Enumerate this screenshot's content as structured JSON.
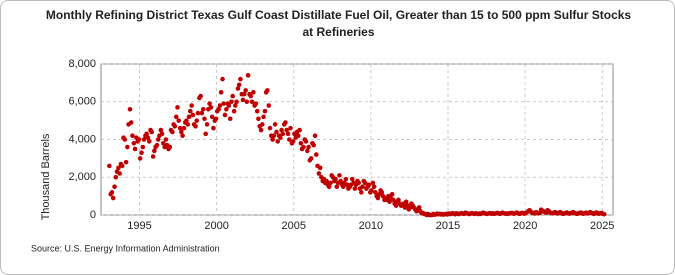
{
  "chart_data": {
    "type": "scatter",
    "title": "Monthly Refining District Texas Gulf Coast Distillate Fuel Oil, Greater than 15 to 500 ppm Sulfur Stocks at Refineries",
    "y_label": "Thousand Barrels",
    "source": "Source: U.S. Energy Information Administration",
    "color": "#c00000",
    "grid": true,
    "xlim": [
      1992.5,
      2025.7
    ],
    "xticks": [
      1995,
      2000,
      2005,
      2010,
      2015,
      2020,
      2025
    ],
    "ylim": [
      0,
      8000
    ],
    "yticks": [
      0,
      {
        "value": 2000,
        "label": "2,000"
      },
      {
        "value": 4000,
        "label": "4,000"
      },
      {
        "value": 6000,
        "label": "6,000"
      },
      {
        "value": 8000,
        "label": "8,000"
      }
    ],
    "x": [
      1993.04,
      1993.13,
      1993.21,
      1993.29,
      1993.38,
      1993.46,
      1993.54,
      1993.63,
      1993.71,
      1993.79,
      1993.88,
      1993.96,
      1994.04,
      1994.13,
      1994.21,
      1994.29,
      1994.38,
      1994.46,
      1994.54,
      1994.63,
      1994.71,
      1994.79,
      1994.88,
      1994.96,
      1995.04,
      1995.13,
      1995.21,
      1995.29,
      1995.38,
      1995.46,
      1995.54,
      1995.63,
      1995.71,
      1995.79,
      1995.88,
      1995.96,
      1996.04,
      1996.13,
      1996.21,
      1996.29,
      1996.38,
      1996.46,
      1996.54,
      1996.63,
      1996.71,
      1996.79,
      1996.88,
      1996.96,
      1997.04,
      1997.13,
      1997.21,
      1997.29,
      1997.38,
      1997.46,
      1997.54,
      1997.63,
      1997.71,
      1997.79,
      1997.88,
      1997.96,
      1998.04,
      1998.13,
      1998.21,
      1998.29,
      1998.38,
      1998.46,
      1998.54,
      1998.63,
      1998.71,
      1998.79,
      1998.88,
      1998.96,
      1999.04,
      1999.13,
      1999.21,
      1999.29,
      1999.38,
      1999.46,
      1999.54,
      1999.63,
      1999.71,
      1999.79,
      1999.88,
      1999.96,
      2000.04,
      2000.13,
      2000.21,
      2000.29,
      2000.38,
      2000.46,
      2000.54,
      2000.63,
      2000.71,
      2000.79,
      2000.88,
      2000.96,
      2001.04,
      2001.13,
      2001.21,
      2001.29,
      2001.38,
      2001.46,
      2001.54,
      2001.63,
      2001.71,
      2001.79,
      2001.88,
      2001.96,
      2002.04,
      2002.13,
      2002.21,
      2002.29,
      2002.38,
      2002.46,
      2002.54,
      2002.63,
      2002.71,
      2002.79,
      2002.88,
      2002.96,
      2003.04,
      2003.13,
      2003.21,
      2003.29,
      2003.38,
      2003.46,
      2003.54,
      2003.63,
      2003.71,
      2003.79,
      2003.88,
      2003.96,
      2004.04,
      2004.13,
      2004.21,
      2004.29,
      2004.38,
      2004.46,
      2004.54,
      2004.63,
      2004.71,
      2004.79,
      2004.88,
      2004.96,
      2005.04,
      2005.13,
      2005.21,
      2005.29,
      2005.38,
      2005.46,
      2005.54,
      2005.63,
      2005.71,
      2005.79,
      2005.88,
      2005.96,
      2006.04,
      2006.13,
      2006.21,
      2006.29,
      2006.38,
      2006.46,
      2006.54,
      2006.63,
      2006.71,
      2006.79,
      2006.88,
      2006.96,
      2007.04,
      2007.13,
      2007.21,
      2007.29,
      2007.38,
      2007.46,
      2007.54,
      2007.63,
      2007.71,
      2007.79,
      2007.88,
      2007.96,
      2008.04,
      2008.13,
      2008.21,
      2008.29,
      2008.38,
      2008.46,
      2008.54,
      2008.63,
      2008.71,
      2008.79,
      2008.88,
      2008.96,
      2009.04,
      2009.13,
      2009.21,
      2009.29,
      2009.38,
      2009.46,
      2009.54,
      2009.63,
      2009.71,
      2009.79,
      2009.88,
      2009.96,
      2010.04,
      2010.13,
      2010.21,
      2010.29,
      2010.38,
      2010.46,
      2010.54,
      2010.63,
      2010.71,
      2010.79,
      2010.88,
      2010.96,
      2011.04,
      2011.13,
      2011.21,
      2011.29,
      2011.38,
      2011.46,
      2011.54,
      2011.63,
      2011.71,
      2011.79,
      2011.88,
      2011.96,
      2012.04,
      2012.13,
      2012.21,
      2012.29,
      2012.38,
      2012.46,
      2012.54,
      2012.63,
      2012.71,
      2012.79,
      2012.88,
      2012.96,
      2013.04,
      2013.13,
      2013.21,
      2013.29,
      2013.38,
      2013.46,
      2013.54,
      2013.63,
      2013.71,
      2013.79,
      2013.88,
      2013.96,
      2014.04,
      2014.13,
      2014.21,
      2014.29,
      2014.38,
      2014.46,
      2014.54,
      2014.63,
      2014.71,
      2014.79,
      2014.88,
      2014.96,
      2015.04,
      2015.13,
      2015.21,
      2015.29,
      2015.38,
      2015.46,
      2015.54,
      2015.63,
      2015.71,
      2015.79,
      2015.88,
      2015.96,
      2016.04,
      2016.13,
      2016.21,
      2016.29,
      2016.38,
      2016.46,
      2016.54,
      2016.63,
      2016.71,
      2016.79,
      2016.88,
      2016.96,
      2017.04,
      2017.13,
      2017.21,
      2017.29,
      2017.38,
      2017.46,
      2017.54,
      2017.63,
      2017.71,
      2017.79,
      2017.88,
      2017.96,
      2018.04,
      2018.13,
      2018.21,
      2018.29,
      2018.38,
      2018.46,
      2018.54,
      2018.63,
      2018.71,
      2018.79,
      2018.88,
      2018.96,
      2019.04,
      2019.13,
      2019.21,
      2019.29,
      2019.38,
      2019.46,
      2019.54,
      2019.63,
      2019.71,
      2019.79,
      2019.88,
      2019.96,
      2020.04,
      2020.13,
      2020.21,
      2020.29,
      2020.38,
      2020.46,
      2020.54,
      2020.63,
      2020.71,
      2020.79,
      2020.88,
      2020.96,
      2021.04,
      2021.13,
      2021.21,
      2021.29,
      2021.38,
      2021.46,
      2021.54,
      2021.63,
      2021.71,
      2021.79,
      2021.88,
      2021.96,
      2022.04,
      2022.13,
      2022.21,
      2022.29,
      2022.38,
      2022.46,
      2022.54,
      2022.63,
      2022.71,
      2022.79,
      2022.88,
      2022.96,
      2023.04,
      2023.13,
      2023.21,
      2023.29,
      2023.38,
      2023.46,
      2023.54,
      2023.63,
      2023.71,
      2023.79,
      2023.88,
      2023.96,
      2024.04,
      2024.13,
      2024.21,
      2024.29,
      2024.38,
      2024.46,
      2024.54,
      2024.63,
      2024.71,
      2024.79,
      2024.88,
      2024.96,
      2025.04,
      2025.13
    ],
    "values": [
      2600,
      1100,
      1200,
      900,
      1500,
      2000,
      2300,
      2500,
      2200,
      2700,
      2600,
      4100,
      4000,
      2800,
      3600,
      4800,
      5600,
      4900,
      4200,
      3800,
      3500,
      4100,
      3900,
      4000,
      3000,
      3300,
      3600,
      4000,
      4200,
      4300,
      4100,
      3900,
      4500,
      4400,
      3100,
      3400,
      3600,
      3700,
      4000,
      4200,
      4500,
      4300,
      3800,
      3600,
      4000,
      3700,
      3500,
      3600,
      4500,
      4400,
      4800,
      4700,
      5200,
      5700,
      5000,
      4600,
      4400,
      4200,
      4600,
      4900,
      5000,
      4800,
      5200,
      5500,
      5800,
      5300,
      4800,
      4700,
      5000,
      5400,
      6200,
      6300,
      5400,
      5600,
      5100,
      4300,
      4800,
      5600,
      5900,
      5700,
      5200,
      4600,
      5000,
      5100,
      5500,
      5600,
      5800,
      6500,
      7200,
      5900,
      5300,
      5600,
      5900,
      5800,
      5100,
      6000,
      6300,
      5500,
      5800,
      6000,
      6700,
      6900,
      7200,
      6400,
      6100,
      6400,
      6600,
      6000,
      7400,
      6400,
      6300,
      6000,
      6500,
      5800,
      5900,
      5500,
      5100,
      4700,
      4500,
      4800,
      5200,
      5500,
      6500,
      6600,
      5800,
      4600,
      4200,
      4000,
      4200,
      4800,
      4400,
      3900,
      4200,
      4100,
      4500,
      4300,
      4800,
      4900,
      4500,
      4300,
      4000,
      4600,
      3800,
      3900,
      4300,
      4100,
      4400,
      4200,
      4500,
      3800,
      3500,
      3600,
      4000,
      3900,
      3400,
      3600,
      2900,
      3000,
      3800,
      3700,
      4200,
      3200,
      2600,
      2200,
      2500,
      2000,
      1800,
      1900,
      1700,
      1800,
      1600,
      1500,
      1700,
      2100,
      2000,
      1800,
      1900,
      1500,
      1700,
      2100,
      1800,
      1600,
      1500,
      1700,
      1900,
      1600,
      1400,
      1500,
      1600,
      1900,
      1700,
      1400,
      1600,
      1800,
      1700,
      1400,
      1200,
      1500,
      1800,
      1700,
      1400,
      1500,
      1600,
      1200,
      1300,
      1700,
      1500,
      1200,
      1000,
      900,
      1100,
      1300,
      1200,
      1000,
      800,
      900,
      800,
      1000,
      700,
      900,
      1100,
      800,
      600,
      500,
      700,
      800,
      600,
      500,
      500,
      600,
      400,
      700,
      500,
      300,
      400,
      600,
      500,
      400,
      300,
      200,
      300,
      400,
      200,
      100,
      100,
      50,
      50,
      0,
      50,
      0,
      0,
      0,
      50,
      20,
      30,
      80,
      40,
      60,
      30,
      50,
      20,
      40,
      60,
      30,
      80,
      50,
      60,
      100,
      70,
      40,
      90,
      60,
      50,
      80,
      100,
      70,
      60,
      120,
      90,
      80,
      50,
      70,
      100,
      80,
      60,
      90,
      70,
      50,
      80,
      60,
      100,
      120,
      90,
      70,
      60,
      80,
      100,
      70,
      90,
      60,
      70,
      90,
      110,
      80,
      60,
      100,
      120,
      90,
      70,
      80,
      60,
      100,
      90,
      110,
      80,
      70,
      100,
      130,
      90,
      60,
      80,
      110,
      90,
      70,
      100,
      150,
      200,
      250,
      180,
      120,
      100,
      80,
      150,
      120,
      90,
      110,
      280,
      220,
      180,
      150,
      120,
      250,
      200,
      130,
      100,
      90,
      120,
      150,
      100,
      80,
      120,
      150,
      90,
      60,
      80,
      100,
      130,
      90,
      70,
      100,
      120,
      150,
      100,
      80,
      60,
      90,
      110,
      130,
      80,
      70,
      100,
      120,
      80,
      100,
      150,
      120,
      90,
      60,
      100,
      130,
      80,
      70,
      90,
      110,
      60,
      40
    ]
  }
}
